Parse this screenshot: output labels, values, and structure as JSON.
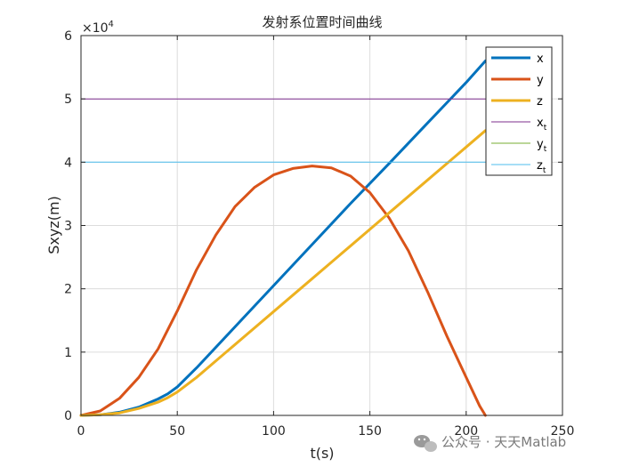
{
  "chart_data": {
    "type": "line",
    "title": "发射系位置时间曲线",
    "xlabel": "t(s)",
    "ylabel": "Sxyz(m)",
    "y_exponent_label": "×10",
    "y_exponent": "4",
    "xlim": [
      0,
      250
    ],
    "ylim": [
      0,
      6
    ],
    "x_ticks": [
      "0",
      "50",
      "100",
      "150",
      "200",
      "250"
    ],
    "y_ticks": [
      "0",
      "1",
      "2",
      "3",
      "4",
      "5",
      "6"
    ],
    "grid": true,
    "legend_position": "top-right",
    "series": [
      {
        "name": "x",
        "sub": "",
        "color": "#0072BD",
        "width": "thick",
        "points": [
          [
            0,
            0
          ],
          [
            10,
            0.01
          ],
          [
            20,
            0.05
          ],
          [
            30,
            0.13
          ],
          [
            40,
            0.26
          ],
          [
            45,
            0.34
          ],
          [
            50,
            0.45
          ],
          [
            60,
            0.75
          ],
          [
            80,
            1.4
          ],
          [
            100,
            2.05
          ],
          [
            120,
            2.7
          ],
          [
            140,
            3.35
          ],
          [
            160,
            3.98
          ],
          [
            180,
            4.62
          ],
          [
            200,
            5.26
          ],
          [
            210,
            5.6
          ]
        ]
      },
      {
        "name": "y",
        "sub": "",
        "color": "#D95319",
        "width": "thick",
        "points": [
          [
            0,
            0
          ],
          [
            10,
            0.07
          ],
          [
            20,
            0.27
          ],
          [
            30,
            0.6
          ],
          [
            40,
            1.05
          ],
          [
            50,
            1.65
          ],
          [
            60,
            2.3
          ],
          [
            70,
            2.85
          ],
          [
            80,
            3.3
          ],
          [
            90,
            3.6
          ],
          [
            100,
            3.8
          ],
          [
            110,
            3.9
          ],
          [
            120,
            3.94
          ],
          [
            130,
            3.91
          ],
          [
            140,
            3.78
          ],
          [
            150,
            3.52
          ],
          [
            160,
            3.12
          ],
          [
            170,
            2.6
          ],
          [
            180,
            1.95
          ],
          [
            190,
            1.25
          ],
          [
            200,
            0.6
          ],
          [
            207,
            0.15
          ],
          [
            210,
            0
          ]
        ]
      },
      {
        "name": "z",
        "sub": "",
        "color": "#EDB120",
        "width": "thick",
        "points": [
          [
            0,
            0
          ],
          [
            10,
            0.01
          ],
          [
            20,
            0.04
          ],
          [
            30,
            0.11
          ],
          [
            40,
            0.21
          ],
          [
            45,
            0.28
          ],
          [
            50,
            0.37
          ],
          [
            60,
            0.6
          ],
          [
            80,
            1.12
          ],
          [
            100,
            1.64
          ],
          [
            120,
            2.16
          ],
          [
            140,
            2.68
          ],
          [
            160,
            3.2
          ],
          [
            180,
            3.72
          ],
          [
            200,
            4.24
          ],
          [
            210,
            4.5
          ]
        ]
      },
      {
        "name": "x",
        "sub": "t",
        "color": "#7E2F8E",
        "width": "thin",
        "points": [
          [
            0,
            5
          ],
          [
            210,
            5
          ]
        ]
      },
      {
        "name": "y",
        "sub": "t",
        "color": "#77AC30",
        "width": "thin",
        "points": [
          [
            0,
            0
          ],
          [
            210,
            0
          ]
        ]
      },
      {
        "name": "z",
        "sub": "t",
        "color": "#4DBEEE",
        "width": "thin",
        "points": [
          [
            0,
            4
          ],
          [
            210,
            4
          ]
        ]
      }
    ]
  },
  "watermark": {
    "text": "公众号 · 天天Matlab",
    "icon": "wechat-icon"
  }
}
